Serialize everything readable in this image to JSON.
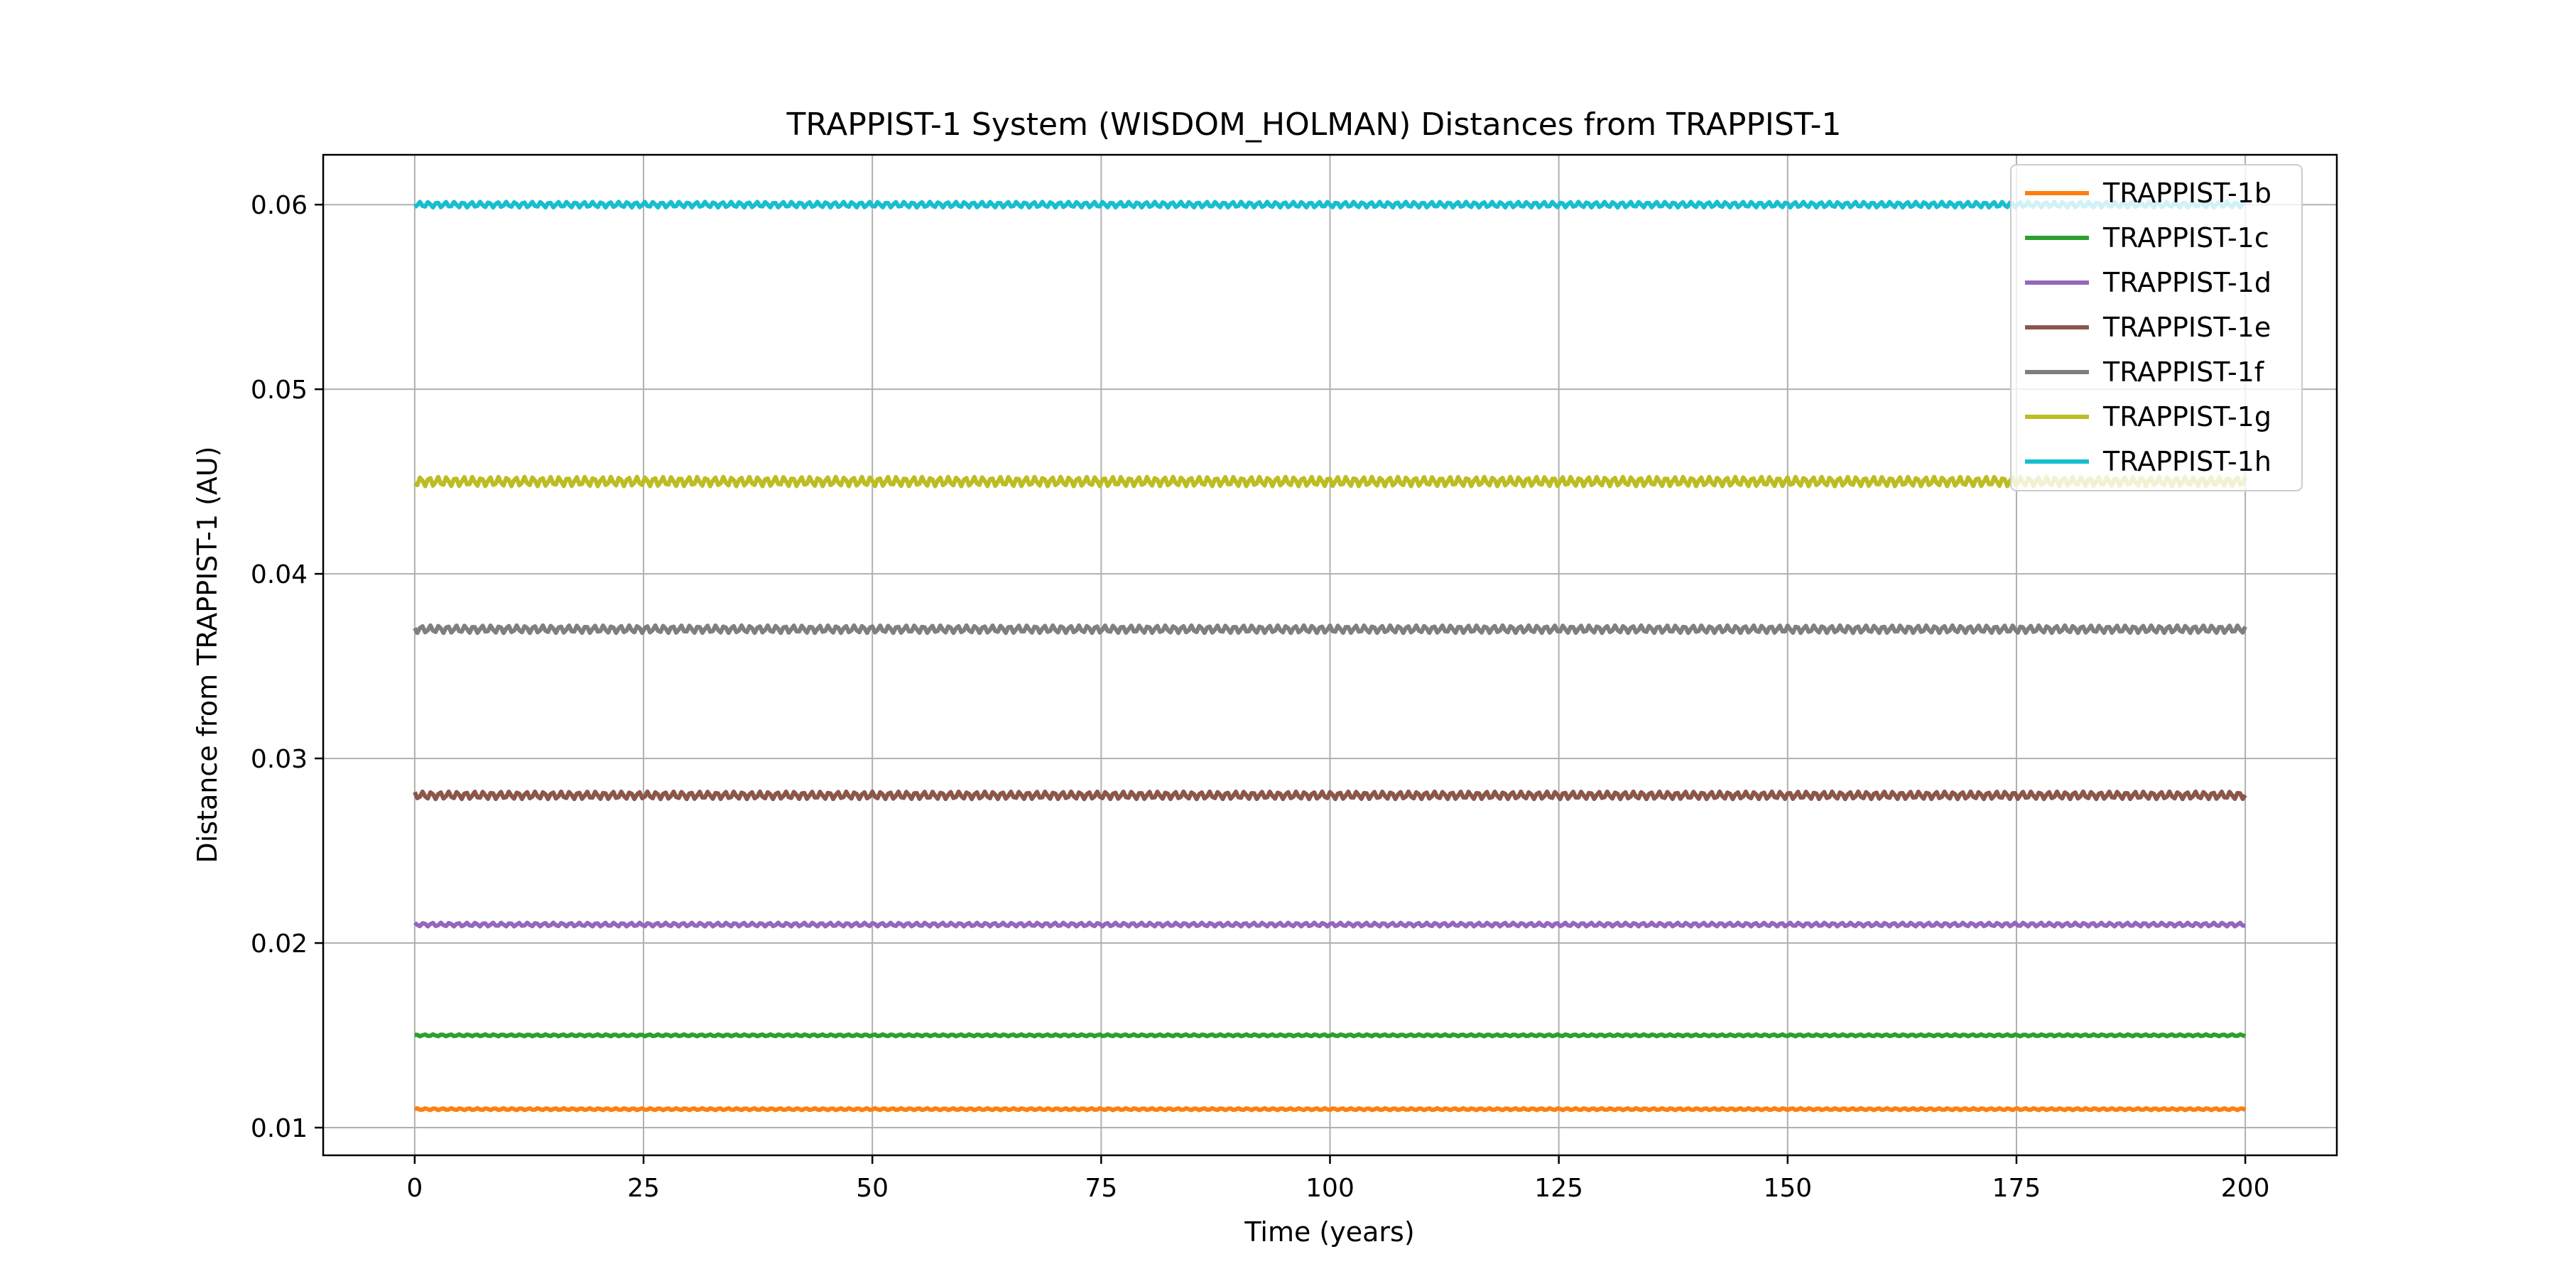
{
  "chart_data": {
    "type": "line",
    "title": "TRAPPIST-1 System (WISDOM_HOLMAN) Distances from TRAPPIST-1",
    "xlabel": "Time (years)",
    "ylabel": "Distance from TRAPPIST-1 (AU)",
    "xlim": [
      -10,
      210
    ],
    "ylim": [
      0.0085,
      0.0627
    ],
    "xticks": [
      0,
      25,
      50,
      75,
      100,
      125,
      150,
      175,
      200
    ],
    "yticks": [
      0.01,
      0.02,
      0.03,
      0.04,
      0.05,
      0.06
    ],
    "xtick_labels": [
      "0",
      "25",
      "50",
      "75",
      "100",
      "125",
      "150",
      "175",
      "200"
    ],
    "ytick_labels": [
      "0.01",
      "0.02",
      "0.03",
      "0.04",
      "0.05",
      "0.06"
    ],
    "grid": true,
    "legend_position": "top-right",
    "x_range": [
      0,
      200
    ],
    "series": [
      {
        "name": "TRAPPIST-1b",
        "color": "#ff7f0e",
        "mean": 0.011,
        "amplitude": 5e-05
      },
      {
        "name": "TRAPPIST-1c",
        "color": "#2ca02c",
        "mean": 0.015,
        "amplitude": 5e-05
      },
      {
        "name": "TRAPPIST-1d",
        "color": "#9467bd",
        "mean": 0.021,
        "amplitude": 0.0001
      },
      {
        "name": "TRAPPIST-1e",
        "color": "#8c564b",
        "mean": 0.028,
        "amplitude": 0.0002
      },
      {
        "name": "TRAPPIST-1f",
        "color": "#7f7f7f",
        "mean": 0.037,
        "amplitude": 0.0002
      },
      {
        "name": "TRAPPIST-1g",
        "color": "#bcbd22",
        "mean": 0.045,
        "amplitude": 0.00025
      },
      {
        "name": "TRAPPIST-1h",
        "color": "#17becf",
        "mean": 0.06,
        "amplitude": 0.00015
      }
    ]
  }
}
